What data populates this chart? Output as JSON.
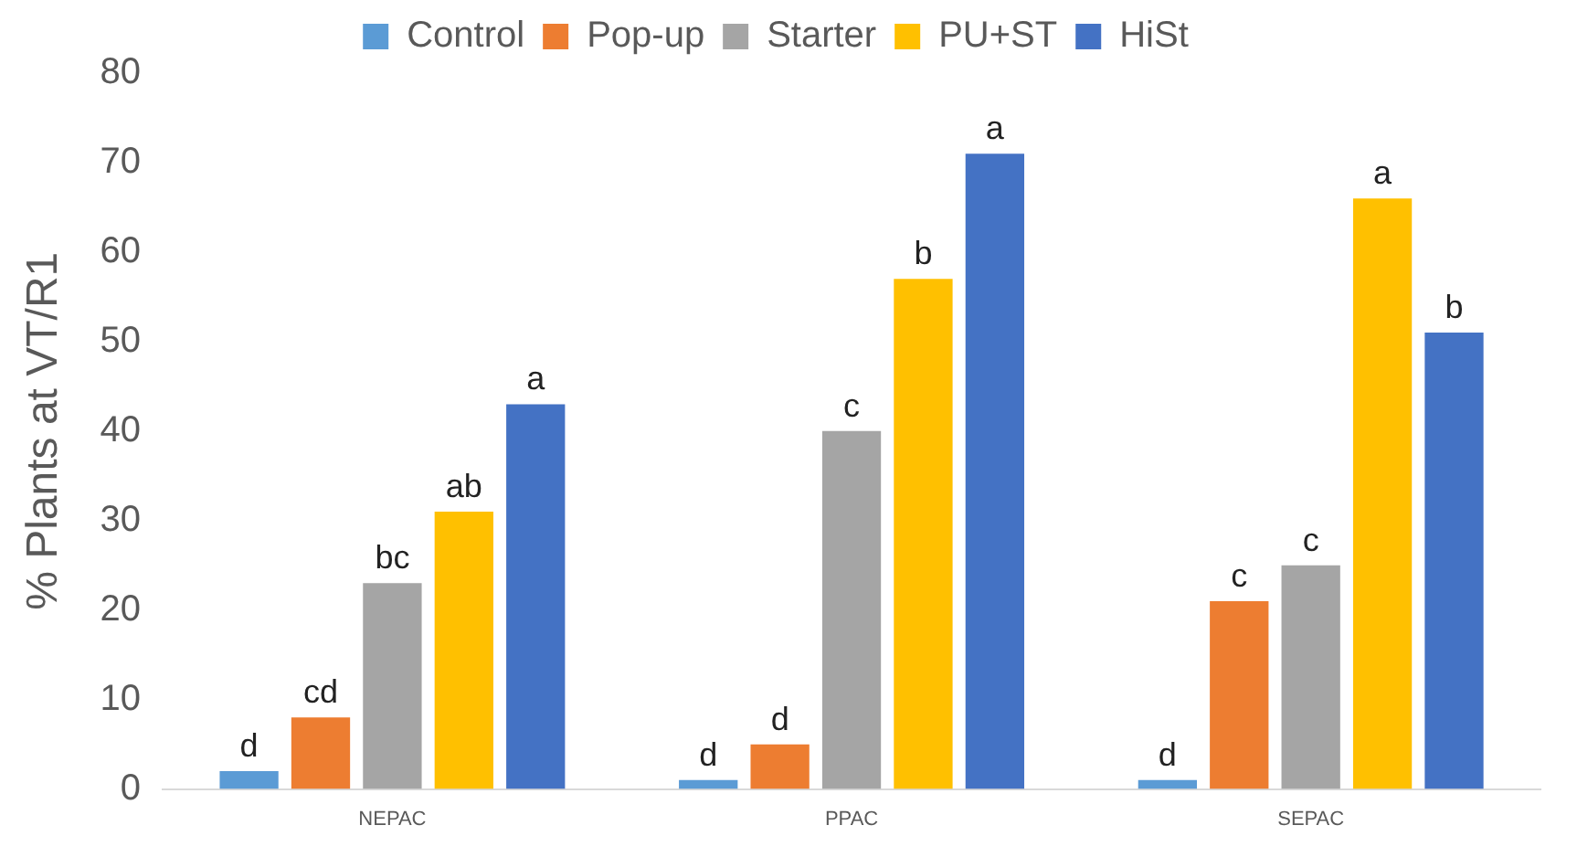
{
  "chart_data": {
    "type": "bar",
    "ylabel": "% Plants at VT/R1",
    "categories": [
      "NEPAC",
      "PPAC",
      "SEPAC"
    ],
    "series": [
      {
        "name": "Control",
        "color": "#5b9bd5",
        "values": [
          2,
          1,
          1
        ],
        "value_labels": [
          "d",
          "d",
          "d"
        ]
      },
      {
        "name": "Pop-up",
        "color": "#ed7d31",
        "values": [
          8,
          5,
          21
        ],
        "value_labels": [
          "cd",
          "d",
          "c"
        ]
      },
      {
        "name": "Starter",
        "color": "#a5a5a5",
        "values": [
          23,
          40,
          25
        ],
        "value_labels": [
          "bc",
          "c",
          "c"
        ]
      },
      {
        "name": "PU+ST",
        "color": "#ffc000",
        "values": [
          31,
          57,
          66
        ],
        "value_labels": [
          "ab",
          "b",
          "a"
        ]
      },
      {
        "name": "HiSt",
        "color": "#4472c4",
        "values": [
          43,
          71,
          51
        ],
        "value_labels": [
          "a",
          "a",
          "b"
        ]
      }
    ],
    "ylim": [
      0,
      80
    ],
    "yticks": [
      0,
      10,
      20,
      30,
      40,
      50,
      60,
      70,
      80
    ],
    "grid": false,
    "legend": "top"
  }
}
